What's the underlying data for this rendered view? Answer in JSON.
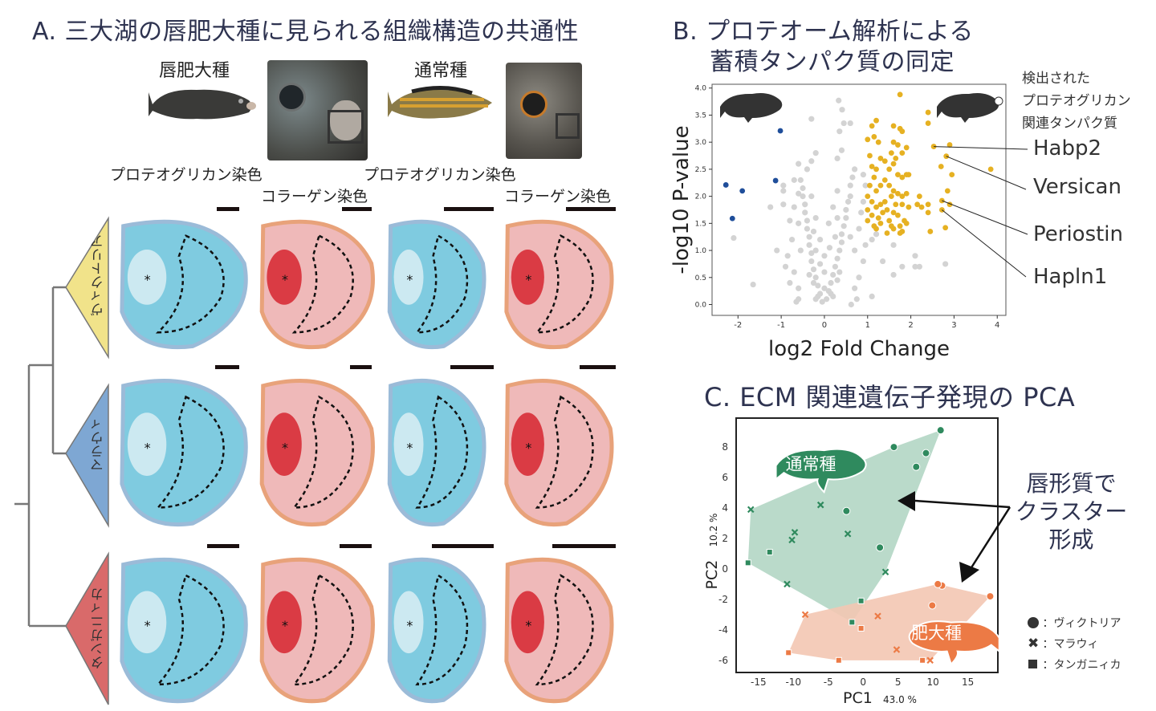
{
  "panel_a": {
    "title": "A. 三大湖の唇肥大種に見られる組織構造の共通性",
    "hypertrophic_label": "唇肥大種",
    "normal_label": "通常種",
    "stain_proteoglycan": "プロテオグリカン染色",
    "stain_collagen": "コラーゲン染色",
    "lakes": [
      "ヴィクトリア",
      "マラウィ",
      "タンガニィカ"
    ],
    "asterisk": "*",
    "colors": {
      "victoria": "#f1e38a",
      "malawi": "#7ea7d3",
      "tanganyika": "#d96a6a"
    }
  },
  "panel_b": {
    "title_line1": "B. プロテオーム解析による",
    "title_line2": "蓄積タンパク質の同定",
    "detected_label": [
      "検出された",
      "プロテオグリカン",
      "関連タンパク質"
    ],
    "genes": [
      "Habp2",
      "Versican",
      "Periostin",
      "Hapln1"
    ]
  },
  "panel_c": {
    "title": "C. ECM 関連遺伝子発現の PCA",
    "annotation": [
      "唇形質で",
      "クラスター",
      "形成"
    ],
    "legend": [
      {
        "marker": "circle",
        "label": "：ヴィクトリア"
      },
      {
        "marker": "cross",
        "label": "：マラウィ"
      },
      {
        "marker": "square",
        "label": "：タンガニィカ"
      }
    ],
    "group_labels": {
      "normal": "通常種",
      "hypertrophic": "肥大種"
    }
  },
  "chart_data": [
    {
      "type": "scatter",
      "name": "volcano",
      "xlabel": "log2 Fold Change",
      "ylabel": "-log10 P-value",
      "xlim": [
        -2.6,
        4.2
      ],
      "ylim": [
        -0.2,
        4.07
      ],
      "xticks": [
        -2,
        -1,
        0,
        1,
        2,
        3,
        4
      ],
      "yticks": [
        "0.0",
        "0.5",
        "1.0",
        "1.5",
        "2.0",
        "2.5",
        "3.0",
        "3.5",
        "4.0"
      ],
      "colors": {
        "ns": "#d3d3d3",
        "down": "#1f4e9a",
        "up": "#e6b122"
      },
      "labeled": [
        {
          "gene": "Habp2",
          "x": 2.53,
          "y": 2.92
        },
        {
          "gene": "Versican",
          "x": 2.82,
          "y": 2.74
        },
        {
          "gene": "Periostin",
          "x": 2.72,
          "y": 1.92
        },
        {
          "gene": "Hapln1",
          "x": 2.72,
          "y": 1.75
        }
      ],
      "down": [
        [
          -2.28,
          2.21
        ],
        [
          -1.9,
          2.1
        ],
        [
          -2.13,
          1.59
        ],
        [
          -1.02,
          3.21
        ],
        [
          -1.13,
          2.29
        ]
      ],
      "up": [
        [
          1.0,
          3.05
        ],
        [
          1.1,
          3.3
        ],
        [
          1.2,
          3.4
        ],
        [
          1.15,
          3.1
        ],
        [
          1.25,
          3.0
        ],
        [
          1.05,
          2.75
        ],
        [
          1.3,
          2.7
        ],
        [
          1.4,
          2.65
        ],
        [
          1.1,
          2.55
        ],
        [
          1.15,
          2.35
        ],
        [
          1.05,
          2.2
        ],
        [
          1.2,
          2.1
        ],
        [
          1.0,
          2.0
        ],
        [
          1.1,
          1.9
        ],
        [
          1.2,
          1.8
        ],
        [
          1.3,
          1.85
        ],
        [
          1.4,
          1.9
        ],
        [
          1.0,
          1.75
        ],
        [
          1.1,
          1.65
        ],
        [
          1.25,
          1.6
        ],
        [
          1.35,
          1.7
        ],
        [
          1.45,
          1.75
        ],
        [
          1.0,
          1.55
        ],
        [
          1.15,
          1.45
        ],
        [
          1.2,
          1.4
        ],
        [
          1.3,
          1.5
        ],
        [
          1.5,
          1.55
        ],
        [
          1.6,
          1.4
        ],
        [
          1.45,
          1.32
        ],
        [
          1.6,
          3.3
        ],
        [
          1.6,
          3.0
        ],
        [
          1.7,
          2.95
        ],
        [
          1.55,
          2.8
        ],
        [
          1.65,
          2.7
        ],
        [
          1.8,
          2.8
        ],
        [
          1.9,
          2.9
        ],
        [
          1.75,
          3.25
        ],
        [
          1.8,
          3.2
        ],
        [
          1.6,
          2.6
        ],
        [
          1.7,
          2.4
        ],
        [
          1.5,
          2.5
        ],
        [
          1.8,
          2.35
        ],
        [
          1.9,
          2.4
        ],
        [
          1.95,
          2.4
        ],
        [
          1.5,
          2.2
        ],
        [
          1.6,
          2.1
        ],
        [
          1.7,
          2.05
        ],
        [
          1.55,
          2.0
        ],
        [
          1.8,
          2.0
        ],
        [
          1.9,
          2.05
        ],
        [
          1.65,
          1.85
        ],
        [
          1.8,
          1.85
        ],
        [
          1.95,
          1.8
        ],
        [
          1.6,
          1.7
        ],
        [
          1.7,
          1.65
        ],
        [
          1.85,
          1.55
        ],
        [
          1.9,
          1.5
        ],
        [
          1.75,
          1.45
        ],
        [
          1.8,
          1.35
        ],
        [
          1.75,
          1.32
        ],
        [
          1.55,
          1.45
        ],
        [
          2.2,
          2.0
        ],
        [
          2.15,
          1.85
        ],
        [
          2.25,
          1.8
        ],
        [
          2.4,
          1.85
        ],
        [
          2.4,
          1.7
        ],
        [
          2.45,
          1.35
        ],
        [
          2.4,
          3.55
        ],
        [
          2.4,
          3.35
        ],
        [
          2.7,
          2.55
        ],
        [
          2.9,
          2.95
        ],
        [
          2.95,
          2.4
        ],
        [
          2.85,
          2.1
        ],
        [
          2.9,
          1.85
        ],
        [
          2.8,
          1.42
        ],
        [
          3.85,
          2.5
        ],
        [
          1.75,
          3.88
        ],
        [
          1.3,
          2.2
        ],
        [
          1.2,
          2.5
        ],
        [
          1.4,
          2.3
        ]
      ],
      "ns": [
        [
          -0.05,
          0.05
        ],
        [
          0.05,
          0.1
        ],
        [
          -0.1,
          0.2
        ],
        [
          0.1,
          0.25
        ],
        [
          -0.15,
          0.35
        ],
        [
          0.15,
          0.4
        ],
        [
          -0.2,
          0.5
        ],
        [
          0.2,
          0.55
        ],
        [
          -0.25,
          0.65
        ],
        [
          0.25,
          0.7
        ],
        [
          -0.3,
          0.8
        ],
        [
          0.3,
          0.85
        ],
        [
          -0.3,
          0.95
        ],
        [
          0.35,
          1.0
        ],
        [
          -0.35,
          1.1
        ],
        [
          0.4,
          1.15
        ],
        [
          -0.35,
          1.25
        ],
        [
          0.4,
          1.3
        ],
        [
          -0.4,
          1.4
        ],
        [
          0.45,
          1.45
        ],
        [
          -0.4,
          1.55
        ],
        [
          0.5,
          1.6
        ],
        [
          -0.45,
          1.7
        ],
        [
          0.5,
          1.75
        ],
        [
          -0.45,
          1.85
        ],
        [
          0.55,
          1.9
        ],
        [
          -0.5,
          2.0
        ],
        [
          0.6,
          2.0
        ],
        [
          -0.5,
          2.15
        ],
        [
          0.6,
          2.2
        ],
        [
          -0.55,
          2.3
        ],
        [
          0.65,
          2.35
        ],
        [
          -0.4,
          2.5
        ],
        [
          0.7,
          2.5
        ],
        [
          -0.3,
          2.65
        ],
        [
          0.3,
          2.7
        ],
        [
          -0.2,
          2.8
        ],
        [
          0.4,
          2.85
        ],
        [
          0.35,
          3.2
        ],
        [
          0.45,
          3.35
        ],
        [
          0.6,
          3.35
        ],
        [
          -0.3,
          3.43
        ],
        [
          0.33,
          3.77
        ],
        [
          0.41,
          3.6
        ],
        [
          -0.6,
          2.05
        ],
        [
          -0.7,
          1.8
        ],
        [
          -0.8,
          1.55
        ],
        [
          -0.75,
          1.2
        ],
        [
          -0.85,
          0.9
        ],
        [
          -0.9,
          0.7
        ],
        [
          -0.7,
          0.6
        ],
        [
          -0.6,
          0.3
        ],
        [
          0.7,
          0.3
        ],
        [
          0.8,
          0.5
        ],
        [
          0.9,
          0.8
        ],
        [
          0.95,
          1.1
        ],
        [
          0.8,
          1.4
        ],
        [
          0.85,
          1.7
        ],
        [
          0.9,
          1.9
        ],
        [
          0.95,
          2.2
        ],
        [
          0.9,
          2.4
        ],
        [
          0.75,
          0.1
        ],
        [
          -0.65,
          0.05
        ],
        [
          -0.2,
          0.1
        ],
        [
          0.2,
          0.15
        ],
        [
          0,
          0.3
        ],
        [
          0,
          0.6
        ],
        [
          0,
          0.9
        ],
        [
          -0.1,
          1.2
        ],
        [
          0.1,
          1.5
        ],
        [
          0.2,
          1.8
        ],
        [
          -0.2,
          1.6
        ],
        [
          -0.3,
          2.0
        ],
        [
          0.3,
          2.1
        ],
        [
          -0.1,
          0.75
        ],
        [
          0.12,
          1.05
        ],
        [
          -0.55,
          1.0
        ],
        [
          0.6,
          1.25
        ],
        [
          -0.6,
          1.5
        ],
        [
          0.7,
          1.0
        ],
        [
          -0.95,
          2.2
        ],
        [
          -0.6,
          2.6
        ],
        [
          -0.8,
          0.4
        ],
        [
          1.1,
          1.2
        ],
        [
          1.2,
          1.3
        ],
        [
          1.6,
          1.1
        ],
        [
          1.8,
          0.7
        ],
        [
          2.1,
          0.7
        ],
        [
          2.2,
          0.7
        ],
        [
          2.1,
          0.9
        ],
        [
          1.35,
          0.8
        ],
        [
          1.6,
          0.55
        ],
        [
          1.1,
          0.15
        ],
        [
          2.8,
          0.75
        ],
        [
          -1.1,
          1.0
        ],
        [
          -1.25,
          1.8
        ],
        [
          -0.95,
          1.85
        ],
        [
          -2.1,
          1.23
        ],
        [
          -1.65,
          0.37
        ],
        [
          -0.6,
          0.1
        ],
        [
          0.62,
          0.0
        ],
        [
          -0.95,
          2.1
        ],
        [
          -0.7,
          2.3
        ],
        [
          -0.15,
          0.15
        ],
        [
          0.15,
          0.2
        ],
        [
          -0.25,
          0.4
        ],
        [
          0.3,
          0.45
        ],
        [
          -0.35,
          0.55
        ],
        [
          0.35,
          0.6
        ],
        [
          -0.2,
          1.0
        ],
        [
          0.25,
          1.25
        ],
        [
          -0.25,
          1.35
        ],
        [
          0.3,
          1.6
        ]
      ]
    },
    {
      "type": "scatter",
      "name": "pca",
      "xlabel": "PC1",
      "xlabel_pct": "43.0 %",
      "ylabel": "PC2",
      "ylabel_pct": "10.2 %",
      "xlim": [
        -18.2,
        19.3
      ],
      "ylim": [
        -6.8,
        9.9
      ],
      "xticks": [
        -15,
        -10,
        -5,
        0,
        5,
        10,
        15
      ],
      "yticks": [
        -6,
        -4,
        -2,
        0,
        2,
        4,
        6,
        8
      ],
      "series": [
        {
          "name": "通常種",
          "color": "#2f8a5e",
          "fill": "#b3d6c4",
          "circle": [
            [
              4.4,
              8.0
            ],
            [
              11.1,
              9.1
            ],
            [
              9.0,
              7.6
            ],
            [
              7.6,
              6.7
            ],
            [
              -2.4,
              3.8
            ],
            [
              2.4,
              1.4
            ]
          ],
          "cross": [
            [
              -16.1,
              3.9
            ],
            [
              -6.1,
              4.2
            ],
            [
              -9.8,
              2.4
            ],
            [
              -10.2,
              1.9
            ],
            [
              -2.2,
              2.3
            ],
            [
              3.2,
              -0.2
            ],
            [
              -10.9,
              -1.0
            ]
          ],
          "square": [
            [
              -13.4,
              1.1
            ],
            [
              -16.5,
              0.4
            ],
            [
              -0.3,
              -2.1
            ],
            [
              -1.6,
              -3.5
            ]
          ]
        },
        {
          "name": "肥大種",
          "color": "#ec7a45",
          "fill": "#f3c7b3",
          "circle": [
            [
              11.3,
              -1.1
            ],
            [
              10.7,
              -1.0
            ],
            [
              18.2,
              -1.8
            ],
            [
              9.9,
              -2.4
            ]
          ],
          "cross": [
            [
              -8.3,
              -3.0
            ],
            [
              2.1,
              -3.1
            ],
            [
              4.8,
              -5.3
            ],
            [
              9.6,
              -6.0
            ]
          ],
          "square": [
            [
              -0.3,
              -3.9
            ],
            [
              -10.7,
              -5.5
            ],
            [
              -3.5,
              -6.0
            ],
            [
              8.5,
              -6.0
            ]
          ]
        }
      ]
    }
  ]
}
